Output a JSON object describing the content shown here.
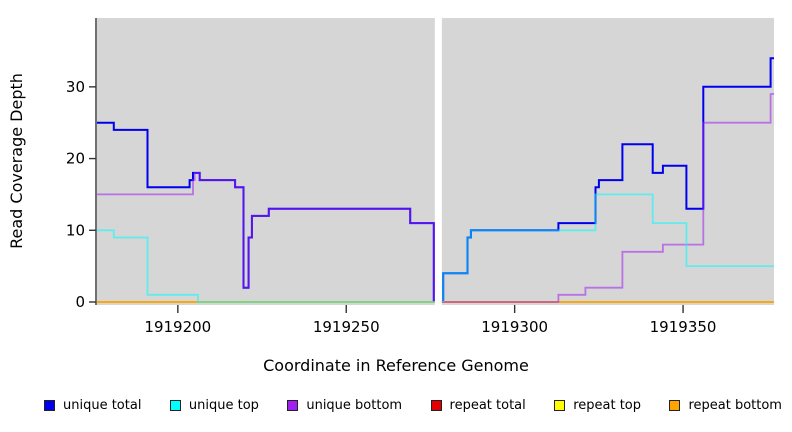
{
  "chart_data": {
    "type": "step-line-coverage",
    "title": "",
    "xlabel": "Coordinate in Reference Genome",
    "ylabel": "Read Coverage Depth",
    "xaxis": {
      "min": 1919176,
      "max": 1919377,
      "ticks": [
        1919200,
        1919250,
        1919300,
        1919350
      ]
    },
    "yaxis": {
      "min": 0,
      "max": 39.6,
      "ticks": [
        0,
        10,
        20,
        30
      ]
    },
    "panel_background": "#D6D6D6",
    "gap": {
      "start": 1919276.3,
      "end": 1919278.4
    },
    "panels": [
      {
        "x0": 1919176,
        "x1": 1919276.3
      },
      {
        "x0": 1919278.4,
        "x1": 1919377
      }
    ],
    "series": [
      {
        "name": "unique-total",
        "color": "#0000EE",
        "opacity": 1,
        "width": 2,
        "segments": [
          {
            "start_rise": false,
            "end_drop": true,
            "end": 1919276,
            "points": [
              [
                1919176,
                25
              ],
              [
                1919181,
                24
              ],
              [
                1919191,
                16
              ],
              [
                1919203.5,
                17
              ],
              [
                1919204.5,
                18
              ],
              [
                1919206.5,
                17
              ],
              [
                1919217,
                16
              ],
              [
                1919219.5,
                2
              ],
              [
                1919221,
                9
              ],
              [
                1919222,
                12
              ],
              [
                1919227,
                13
              ],
              [
                1919269,
                11
              ]
            ]
          },
          {
            "start_rise": true,
            "end_drop": false,
            "end": 1919377,
            "points": [
              [
                1919278.8,
                4
              ],
              [
                1919286,
                9
              ],
              [
                1919287,
                10
              ],
              [
                1919313,
                11
              ],
              [
                1919324,
                16
              ],
              [
                1919325,
                17
              ],
              [
                1919332,
                22
              ],
              [
                1919341,
                18
              ],
              [
                1919344,
                19
              ],
              [
                1919351,
                13
              ],
              [
                1919356,
                30
              ],
              [
                1919376,
                34
              ]
            ]
          }
        ]
      },
      {
        "name": "repeat-total",
        "color": "#E00000",
        "opacity": 0.9,
        "width": 1.6,
        "segments": [
          {
            "start_rise": false,
            "end_drop": false,
            "end": 1919276.3,
            "points": [
              [
                1919176,
                0
              ]
            ]
          },
          {
            "start_rise": false,
            "end_drop": false,
            "end": 1919377,
            "points": [
              [
                1919278.4,
                0
              ]
            ]
          }
        ]
      },
      {
        "name": "repeat-top",
        "color": "#FFFF00",
        "opacity": 0.9,
        "width": 1.6,
        "segments": [
          {
            "start_rise": false,
            "end_drop": false,
            "end": 1919276.3,
            "points": [
              [
                1919176,
                0
              ]
            ]
          },
          {
            "start_rise": false,
            "end_drop": false,
            "end": 1919377,
            "points": [
              [
                1919278.4,
                0
              ]
            ]
          }
        ]
      },
      {
        "name": "repeat-bottom",
        "color": "#FFA500",
        "opacity": 1,
        "width": 1.6,
        "segments": [
          {
            "start_rise": false,
            "end_drop": false,
            "end": 1919276.3,
            "points": [
              [
                1919176,
                0
              ]
            ]
          },
          {
            "start_rise": false,
            "end_drop": false,
            "end": 1919377,
            "points": [
              [
                1919278.4,
                0
              ]
            ]
          }
        ]
      },
      {
        "name": "unique-bottom",
        "color": "#A020F0",
        "opacity": 0.55,
        "width": 1.8,
        "segments": [
          {
            "start_rise": false,
            "end_drop": true,
            "end": 1919276,
            "points": [
              [
                1919176,
                15
              ],
              [
                1919204.5,
                17
              ],
              [
                1919205,
                18
              ],
              [
                1919206.5,
                17
              ],
              [
                1919217,
                16
              ],
              [
                1919219.5,
                2
              ],
              [
                1919221,
                9
              ],
              [
                1919222,
                12
              ],
              [
                1919227,
                13
              ],
              [
                1919269,
                11
              ]
            ]
          },
          {
            "start_rise": false,
            "end_drop": false,
            "end": 1919377,
            "points": [
              [
                1919278.4,
                0
              ],
              [
                1919313,
                1
              ],
              [
                1919321,
                2
              ],
              [
                1919332,
                7
              ],
              [
                1919344,
                8
              ],
              [
                1919356,
                25
              ],
              [
                1919376,
                29
              ]
            ]
          }
        ]
      },
      {
        "name": "unique-top",
        "color": "#00FFFF",
        "opacity": 0.55,
        "width": 1.8,
        "segments": [
          {
            "start_rise": false,
            "end_drop": false,
            "end": 1919276.3,
            "points": [
              [
                1919176,
                10
              ],
              [
                1919181,
                9
              ],
              [
                1919191,
                1
              ],
              [
                1919206,
                0
              ]
            ]
          },
          {
            "start_rise": true,
            "end_drop": false,
            "end": 1919377,
            "points": [
              [
                1919278.8,
                4
              ],
              [
                1919286,
                9
              ],
              [
                1919287,
                10
              ],
              [
                1919324,
                15
              ],
              [
                1919341,
                11
              ],
              [
                1919351,
                5
              ]
            ]
          }
        ]
      }
    ],
    "legend": [
      {
        "label": "unique total",
        "color": "#0000EE"
      },
      {
        "label": "unique top",
        "color": "#00FFFF"
      },
      {
        "label": "unique bottom",
        "color": "#A020F0"
      },
      {
        "label": "repeat total",
        "color": "#E00000"
      },
      {
        "label": "repeat top",
        "color": "#FFFF00"
      },
      {
        "label": "repeat bottom",
        "color": "#FFA500"
      }
    ]
  }
}
